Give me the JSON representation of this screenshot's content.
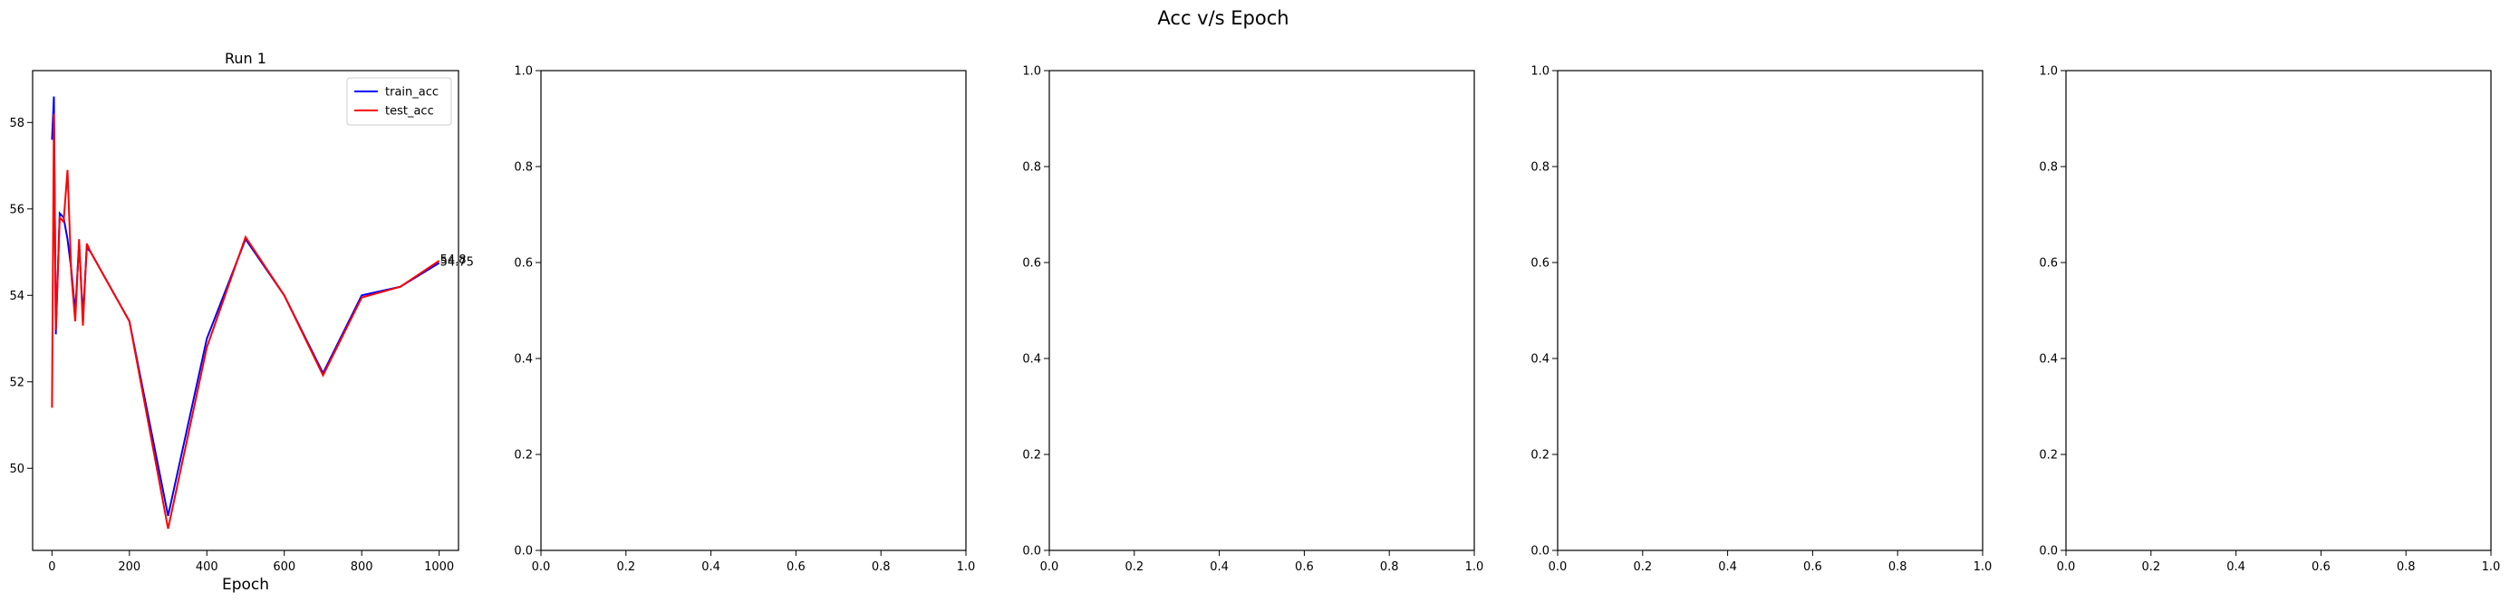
{
  "figure": {
    "suptitle": "Acc v/s Epoch"
  },
  "colors": {
    "train": "#0000ff",
    "test": "#ff0000",
    "axes": "#000000"
  },
  "chart_data": [
    {
      "type": "line",
      "title": "Run 1",
      "xlabel": "Epoch",
      "ylabel": "",
      "xlim": [
        -50,
        1050
      ],
      "ylim": [
        48.1,
        59.2
      ],
      "xticks": [
        0,
        200,
        400,
        600,
        800,
        1000
      ],
      "yticks": [
        50,
        52,
        54,
        56,
        58
      ],
      "legend": "top-right",
      "grid": false,
      "series": [
        {
          "name": "train_acc",
          "color": "#0000ff",
          "x": [
            0,
            5,
            10,
            20,
            30,
            40,
            50,
            60,
            70,
            80,
            90,
            100,
            200,
            300,
            400,
            500,
            600,
            700,
            800,
            900,
            1000
          ],
          "y": [
            57.6,
            58.6,
            53.1,
            55.9,
            55.8,
            55.3,
            54.6,
            53.6,
            55.2,
            53.5,
            55.1,
            55.0,
            53.4,
            48.9,
            53.0,
            55.3,
            54.0,
            52.2,
            54.0,
            54.2,
            54.75
          ]
        },
        {
          "name": "test_acc",
          "color": "#ff0000",
          "x": [
            0,
            5,
            10,
            20,
            30,
            40,
            50,
            60,
            70,
            80,
            90,
            100,
            200,
            300,
            400,
            500,
            600,
            700,
            800,
            900,
            1000
          ],
          "y": [
            51.4,
            58.2,
            53.2,
            55.8,
            55.7,
            56.9,
            54.5,
            53.4,
            55.3,
            53.3,
            55.2,
            55.0,
            53.4,
            48.6,
            52.8,
            55.35,
            54.0,
            52.15,
            53.95,
            54.2,
            54.8
          ]
        }
      ],
      "annotations": [
        {
          "text": "54.75",
          "x": 1000,
          "y": 54.75
        },
        {
          "text": "54.8",
          "x": 1000,
          "y": 54.8
        }
      ]
    },
    {
      "type": "line",
      "title": "",
      "xlabel": "",
      "xlim": [
        0,
        1
      ],
      "ylim": [
        0,
        1
      ],
      "xticks": [
        0.0,
        0.2,
        0.4,
        0.6,
        0.8,
        1.0
      ],
      "yticks": [
        0.0,
        0.2,
        0.4,
        0.6,
        0.8,
        1.0
      ],
      "xtick_labels": [
        "0.0",
        "0.2",
        "0.4",
        "0.6",
        "0.8",
        "1.0"
      ],
      "ytick_labels": [
        "0.0",
        "0.2",
        "0.4",
        "0.6",
        "0.8",
        "1.0"
      ],
      "series": []
    },
    {
      "type": "line",
      "title": "",
      "xlabel": "",
      "xlim": [
        0,
        1
      ],
      "ylim": [
        0,
        1
      ],
      "xticks": [
        0.0,
        0.2,
        0.4,
        0.6,
        0.8,
        1.0
      ],
      "yticks": [
        0.0,
        0.2,
        0.4,
        0.6,
        0.8,
        1.0
      ],
      "xtick_labels": [
        "0.0",
        "0.2",
        "0.4",
        "0.6",
        "0.8",
        "1.0"
      ],
      "ytick_labels": [
        "0.0",
        "0.2",
        "0.4",
        "0.6",
        "0.8",
        "1.0"
      ],
      "series": []
    },
    {
      "type": "line",
      "title": "",
      "xlabel": "",
      "xlim": [
        0,
        1
      ],
      "ylim": [
        0,
        1
      ],
      "xticks": [
        0.0,
        0.2,
        0.4,
        0.6,
        0.8,
        1.0
      ],
      "yticks": [
        0.0,
        0.2,
        0.4,
        0.6,
        0.8,
        1.0
      ],
      "xtick_labels": [
        "0.0",
        "0.2",
        "0.4",
        "0.6",
        "0.8",
        "1.0"
      ],
      "ytick_labels": [
        "0.0",
        "0.2",
        "0.4",
        "0.6",
        "0.8",
        "1.0"
      ],
      "series": []
    },
    {
      "type": "line",
      "title": "",
      "xlabel": "",
      "xlim": [
        0,
        1
      ],
      "ylim": [
        0,
        1
      ],
      "xticks": [
        0.0,
        0.2,
        0.4,
        0.6,
        0.8,
        1.0
      ],
      "yticks": [
        0.0,
        0.2,
        0.4,
        0.6,
        0.8,
        1.0
      ],
      "xtick_labels": [
        "0.0",
        "0.2",
        "0.4",
        "0.6",
        "0.8",
        "1.0"
      ],
      "ytick_labels": [
        "0.0",
        "0.2",
        "0.4",
        "0.6",
        "0.8",
        "1.0"
      ],
      "series": []
    }
  ]
}
